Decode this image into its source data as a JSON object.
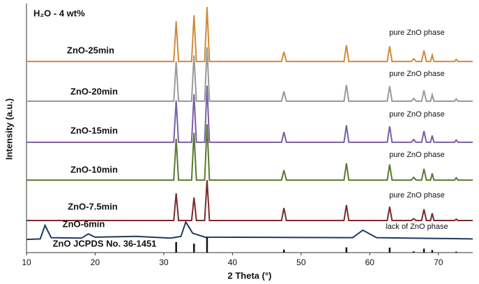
{
  "chart_data": {
    "type": "line",
    "title": "H₂O - 4 wt%",
    "x_label": "2 Theta (°)",
    "y_label": "Intensity (a.u.)",
    "xlim": [
      10,
      75
    ],
    "xticks": [
      10,
      20,
      30,
      40,
      50,
      60,
      70
    ],
    "ylim": [
      0,
      100
    ],
    "x": [
      10,
      31.45,
      31.8,
      32.15,
      34.05,
      34.4,
      34.75,
      35.95,
      36.3,
      36.65,
      47.15,
      47.5,
      47.85,
      56.25,
      56.6,
      56.95,
      62.55,
      62.9,
      63.25,
      66.05,
      66.4,
      66.75,
      67.55,
      67.9,
      68.25,
      68.85,
      69.1,
      69.35,
      72.35,
      72.6,
      72.85,
      75
    ],
    "series": [
      {
        "name": "ZnO-25min",
        "color": "#d4893a",
        "values": [
          76.7,
          76.7,
          92.9,
          76.7,
          76.7,
          95.3,
          76.7,
          76.7,
          98.6,
          76.7,
          76.7,
          80.6,
          76.7,
          76.7,
          83.3,
          76.7,
          76.7,
          82.8,
          76.7,
          76.7,
          77.8,
          76.7,
          76.7,
          81.1,
          76.7,
          76.7,
          79.3,
          76.7,
          76.7,
          77.6,
          76.7,
          76.7
        ]
      },
      {
        "name": "ZnO-20min",
        "color": "#9a9a9a",
        "values": [
          60.8,
          60.8,
          76.8,
          60.8,
          60.8,
          79.2,
          60.8,
          60.8,
          82.4,
          60.8,
          60.8,
          64.7,
          60.8,
          60.8,
          67.3,
          60.8,
          60.8,
          66.8,
          60.8,
          60.8,
          61.9,
          60.8,
          60.8,
          65.1,
          60.8,
          60.8,
          63.4,
          60.8,
          60.8,
          61.7,
          60.8,
          60.8
        ]
      },
      {
        "name": "ZnO-15min",
        "color": "#7b5ea7",
        "values": [
          44.3,
          44.3,
          61.1,
          44.3,
          44.3,
          63.6,
          44.3,
          44.3,
          67.0,
          44.3,
          44.3,
          48.4,
          44.3,
          44.3,
          51.1,
          44.3,
          44.3,
          50.7,
          44.3,
          44.3,
          45.4,
          44.3,
          44.3,
          48.8,
          44.3,
          44.3,
          47.0,
          44.3,
          44.3,
          45.2,
          44.3,
          44.3
        ]
      },
      {
        "name": "ZnO-10min",
        "color": "#5a7a2e",
        "values": [
          29.1,
          29.1,
          45.7,
          29.1,
          29.1,
          48.1,
          29.1,
          29.1,
          51.5,
          29.1,
          29.1,
          33.1,
          29.1,
          29.1,
          35.8,
          29.1,
          29.1,
          35.4,
          29.1,
          29.1,
          30.2,
          29.1,
          29.1,
          33.6,
          29.1,
          29.1,
          31.8,
          29.1,
          29.1,
          30.0,
          29.1,
          29.1
        ]
      },
      {
        "name": "ZnO-7.5min",
        "color": "#7b2a2a",
        "values": [
          12.9,
          12.9,
          23.8,
          12.9,
          12.9,
          22.1,
          12.9,
          12.9,
          29.1,
          12.9,
          12.9,
          17.9,
          12.9,
          12.9,
          19.1,
          12.9,
          12.9,
          18.4,
          12.9,
          12.9,
          13.6,
          12.9,
          12.9,
          17.4,
          12.9,
          12.9,
          15.8,
          12.9,
          12.9,
          13.4,
          12.9,
          12.9
        ]
      },
      {
        "name": "ZnO-6min",
        "color": "#1f3a5f",
        "x": [
          10,
          12,
          12.7,
          13.6,
          18,
          19,
          20,
          26,
          31,
          32.5,
          33.2,
          34.2,
          36,
          57.5,
          59,
          61,
          75
        ],
        "values": [
          5.3,
          5.5,
          10.9,
          6.0,
          5.8,
          7.5,
          6.2,
          6.5,
          5.8,
          6.5,
          12.3,
          7.8,
          6.2,
          6.0,
          9.0,
          6.0,
          5.5
        ]
      }
    ],
    "reference": {
      "name": "ZnO JCPDS No. 36-1451",
      "color": "#111111",
      "x": [
        31.8,
        34.4,
        36.3,
        47.5,
        56.6,
        62.9,
        66.4,
        67.9,
        69.1,
        72.6
      ],
      "values": [
        4.2,
        3.6,
        6.2,
        1.2,
        2.1,
        2.0,
        0.5,
        1.6,
        1.0,
        0.4
      ]
    },
    "annotations": [
      "pure ZnO phase",
      "pure ZnO phase",
      "pure ZnO phase",
      "pure ZnO phase",
      "pure ZnO phase",
      "lack of ZnO phase"
    ]
  }
}
